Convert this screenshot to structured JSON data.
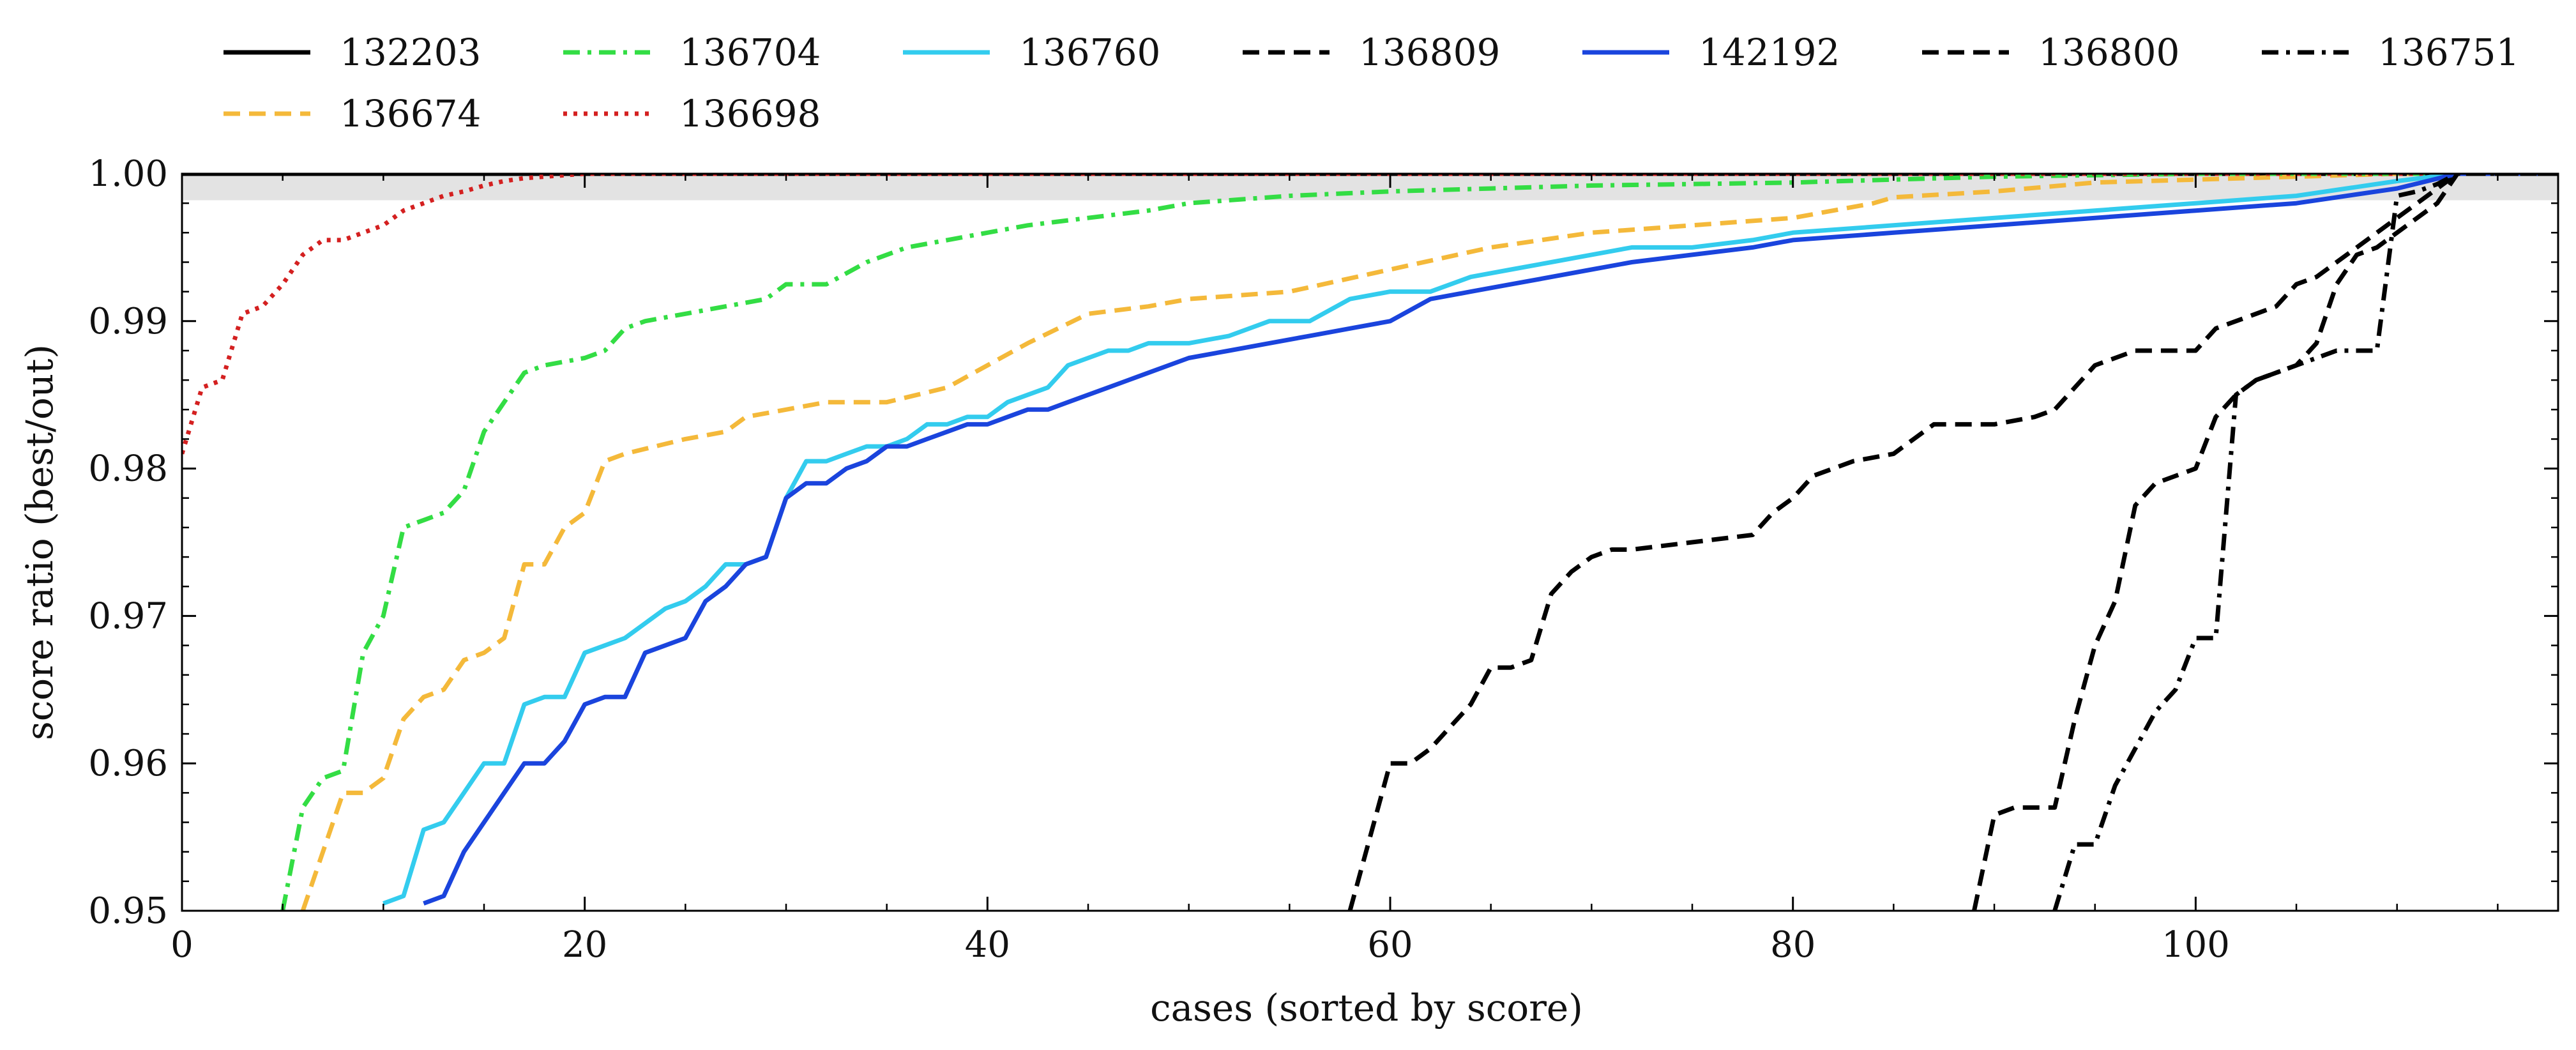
{
  "chart_data": {
    "type": "line",
    "xlabel": "cases (sorted by score)",
    "ylabel": "score ratio (best/out)",
    "xlim": [
      0,
      118
    ],
    "ylim": [
      0.95,
      1.0
    ],
    "x_ticks": [
      0,
      20,
      40,
      60,
      80,
      100
    ],
    "x_tick_labels": [
      "0",
      "20",
      "40",
      "60",
      "80",
      "100"
    ],
    "y_ticks": [
      0.95,
      0.96,
      0.97,
      0.98,
      0.99,
      1.0
    ],
    "y_tick_labels": [
      "0.95",
      "0.96",
      "0.97",
      "0.98",
      "0.99",
      "1.00"
    ],
    "grid": false,
    "legend_position": "top (above plot, two rows)",
    "shaded_band": {
      "y_from": 0.9982,
      "y_to": 1.0,
      "color": "#e3e3e3"
    },
    "series": [
      {
        "name": "132203",
        "color": "#000000",
        "style": "solid",
        "x": [
          0,
          118
        ],
        "y": [
          1.0,
          1.0
        ]
      },
      {
        "name": "136674",
        "color": "#f4b93a",
        "style": "dashed",
        "x": [
          6,
          7,
          8,
          9,
          10,
          11,
          12,
          13,
          14,
          15,
          16,
          17,
          18,
          19,
          20,
          21,
          22,
          25,
          27,
          28,
          30,
          32,
          35,
          38,
          40,
          42,
          45,
          48,
          50,
          55,
          60,
          65,
          70,
          75,
          80,
          84,
          85,
          90,
          95,
          100,
          105,
          110,
          113,
          118
        ],
        "y": [
          0.95,
          0.954,
          0.958,
          0.958,
          0.959,
          0.963,
          0.9645,
          0.965,
          0.967,
          0.9675,
          0.9685,
          0.9735,
          0.9735,
          0.976,
          0.977,
          0.9805,
          0.981,
          0.982,
          0.9825,
          0.9835,
          0.984,
          0.9845,
          0.9845,
          0.9855,
          0.987,
          0.9885,
          0.9905,
          0.991,
          0.9915,
          0.992,
          0.9935,
          0.995,
          0.996,
          0.9965,
          0.997,
          0.998,
          0.9984,
          0.9988,
          0.9994,
          0.9996,
          0.9998,
          1.0,
          1.0,
          1.0
        ]
      },
      {
        "name": "136704",
        "color": "#33dd44",
        "style": "dashdot",
        "x": [
          5,
          6,
          7,
          8,
          9,
          10,
          11,
          12,
          13,
          14,
          15,
          16,
          17,
          18,
          20,
          21,
          22,
          23,
          25,
          27,
          29,
          30,
          32,
          34,
          36,
          38,
          40,
          42,
          45,
          48,
          50,
          55,
          60,
          65,
          70,
          75,
          80,
          85,
          90,
          95,
          100,
          105,
          118
        ],
        "y": [
          0.95,
          0.957,
          0.959,
          0.9595,
          0.9675,
          0.97,
          0.976,
          0.9765,
          0.977,
          0.9785,
          0.9825,
          0.9845,
          0.9865,
          0.987,
          0.9875,
          0.988,
          0.9895,
          0.99,
          0.9905,
          0.991,
          0.9915,
          0.9925,
          0.9925,
          0.994,
          0.995,
          0.9955,
          0.996,
          0.9965,
          0.997,
          0.9975,
          0.998,
          0.9985,
          0.9988,
          0.999,
          0.9992,
          0.9993,
          0.9994,
          0.9996,
          0.9998,
          0.9999,
          1.0,
          1.0,
          1.0
        ]
      },
      {
        "name": "136698",
        "color": "#d42020",
        "style": "dotted",
        "x": [
          0,
          1,
          2,
          3,
          4,
          5,
          6,
          7,
          8,
          9,
          10,
          11,
          12,
          13,
          14,
          15,
          16,
          17,
          18,
          19,
          20,
          118
        ],
        "y": [
          0.981,
          0.9855,
          0.986,
          0.9905,
          0.991,
          0.9925,
          0.9945,
          0.9955,
          0.9955,
          0.996,
          0.9965,
          0.9975,
          0.998,
          0.9985,
          0.9988,
          0.9992,
          0.9995,
          0.9997,
          0.9998,
          0.9999,
          1.0,
          1.0
        ]
      },
      {
        "name": "136760",
        "color": "#33ccee",
        "style": "solid",
        "x": [
          10,
          11,
          12,
          13,
          14,
          15,
          16,
          17,
          18,
          19,
          20,
          21,
          22,
          23,
          24,
          25,
          26,
          27,
          28,
          29,
          30,
          31,
          32,
          33,
          34,
          35,
          36,
          37,
          38,
          39,
          40,
          41,
          42,
          43,
          44,
          45,
          46,
          47,
          48,
          50,
          52,
          54,
          56,
          58,
          60,
          62,
          64,
          66,
          68,
          70,
          72,
          75,
          78,
          80,
          85,
          90,
          95,
          100,
          105,
          110,
          113,
          118
        ],
        "y": [
          0.9505,
          0.951,
          0.9555,
          0.956,
          0.958,
          0.96,
          0.96,
          0.964,
          0.9645,
          0.9645,
          0.9675,
          0.968,
          0.9685,
          0.9695,
          0.9705,
          0.971,
          0.972,
          0.9735,
          0.9735,
          0.974,
          0.978,
          0.9805,
          0.9805,
          0.981,
          0.9815,
          0.9815,
          0.982,
          0.983,
          0.983,
          0.9835,
          0.9835,
          0.9845,
          0.985,
          0.9855,
          0.987,
          0.9875,
          0.988,
          0.988,
          0.9885,
          0.9885,
          0.989,
          0.99,
          0.99,
          0.9915,
          0.992,
          0.992,
          0.993,
          0.9935,
          0.994,
          0.9945,
          0.995,
          0.995,
          0.9955,
          0.996,
          0.9965,
          0.997,
          0.9975,
          0.998,
          0.9985,
          0.9995,
          1.0,
          1.0
        ]
      },
      {
        "name": "136809",
        "color": "#000000",
        "style": "dashed",
        "x": [
          58,
          59,
          60,
          61,
          62,
          63,
          64,
          65,
          66,
          67,
          68,
          69,
          70,
          71,
          72,
          75,
          78,
          79,
          80,
          81,
          82,
          83,
          85,
          86,
          87,
          90,
          92,
          93,
          94,
          95,
          96,
          97,
          98,
          100,
          101,
          102,
          103,
          104,
          105,
          106,
          107,
          108,
          109,
          110,
          111,
          112,
          113,
          118
        ],
        "y": [
          0.95,
          0.955,
          0.96,
          0.96,
          0.961,
          0.9625,
          0.964,
          0.9665,
          0.9665,
          0.967,
          0.9715,
          0.973,
          0.974,
          0.9745,
          0.9745,
          0.975,
          0.9755,
          0.977,
          0.978,
          0.9795,
          0.98,
          0.9805,
          0.981,
          0.982,
          0.983,
          0.983,
          0.9835,
          0.984,
          0.9855,
          0.987,
          0.9875,
          0.988,
          0.988,
          0.988,
          0.9895,
          0.99,
          0.9905,
          0.991,
          0.9925,
          0.993,
          0.994,
          0.995,
          0.996,
          0.997,
          0.998,
          0.999,
          1.0,
          1.0
        ]
      },
      {
        "name": "142192",
        "color": "#1a44dd",
        "style": "solid",
        "x": [
          12,
          13,
          14,
          15,
          16,
          17,
          18,
          19,
          20,
          21,
          22,
          23,
          24,
          25,
          26,
          27,
          28,
          29,
          30,
          31,
          32,
          33,
          34,
          35,
          36,
          37,
          38,
          39,
          40,
          41,
          42,
          43,
          44,
          45,
          46,
          47,
          48,
          49,
          50,
          52,
          54,
          56,
          58,
          60,
          62,
          64,
          66,
          68,
          70,
          72,
          75,
          78,
          80,
          85,
          90,
          95,
          100,
          105,
          110,
          113,
          118
        ],
        "y": [
          0.9505,
          0.951,
          0.954,
          0.956,
          0.958,
          0.96,
          0.96,
          0.9615,
          0.964,
          0.9645,
          0.9645,
          0.9675,
          0.968,
          0.9685,
          0.971,
          0.972,
          0.9735,
          0.974,
          0.978,
          0.979,
          0.979,
          0.98,
          0.9805,
          0.9815,
          0.9815,
          0.982,
          0.9825,
          0.983,
          0.983,
          0.9835,
          0.984,
          0.984,
          0.9845,
          0.985,
          0.9855,
          0.986,
          0.9865,
          0.987,
          0.9875,
          0.988,
          0.9885,
          0.989,
          0.9895,
          0.99,
          0.9915,
          0.992,
          0.9925,
          0.993,
          0.9935,
          0.994,
          0.9945,
          0.995,
          0.9955,
          0.996,
          0.9965,
          0.997,
          0.9975,
          0.998,
          0.999,
          1.0,
          1.0
        ]
      },
      {
        "name": "136800",
        "color": "#000000",
        "style": "dashed",
        "x": [
          89,
          90,
          91,
          92,
          93,
          94,
          95,
          96,
          97,
          98,
          99,
          100,
          101,
          102,
          103,
          104,
          105,
          106,
          107,
          108,
          109,
          110,
          111,
          112,
          113,
          118
        ],
        "y": [
          0.95,
          0.9565,
          0.957,
          0.957,
          0.957,
          0.963,
          0.968,
          0.971,
          0.9775,
          0.979,
          0.9795,
          0.98,
          0.9835,
          0.985,
          0.986,
          0.9865,
          0.987,
          0.9885,
          0.9925,
          0.9945,
          0.995,
          0.996,
          0.997,
          0.998,
          1.0,
          1.0
        ]
      },
      {
        "name": "136751",
        "color": "#000000",
        "style": "dashdot",
        "x": [
          93,
          94,
          95,
          96,
          97,
          98,
          99,
          100,
          101,
          102,
          103,
          104,
          105,
          106,
          107,
          108,
          109,
          110,
          111,
          112,
          113,
          118
        ],
        "y": [
          0.95,
          0.9545,
          0.9545,
          0.9585,
          0.961,
          0.9635,
          0.965,
          0.9685,
          0.9685,
          0.985,
          0.986,
          0.9865,
          0.987,
          0.9875,
          0.988,
          0.988,
          0.988,
          0.9985,
          0.9988,
          0.9993,
          1.0,
          1.0
        ]
      }
    ]
  }
}
